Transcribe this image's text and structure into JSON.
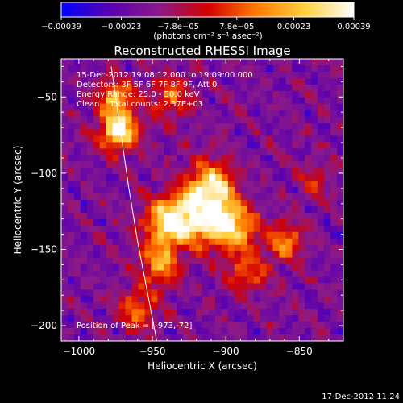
{
  "chart_data": {
    "type": "heatmap",
    "title": "Reconstructed RHESSI Image",
    "xlabel": "Heliocentric X (arcsec)",
    "ylabel": "Heliocentric Y (arcsec)",
    "xlim": [
      -1012,
      -820
    ],
    "ylim": [
      -210,
      -25
    ],
    "x_ticks": [
      -1000,
      -950,
      -900,
      -850
    ],
    "y_ticks": [
      -200,
      -150,
      -100,
      -50
    ],
    "x_tick_labels": [
      "−1000",
      "−950",
      "−900",
      "−850"
    ],
    "y_tick_labels": [
      "−200",
      "−150",
      "−100",
      "−50"
    ],
    "colorbar": {
      "range": [
        -0.00039,
        0.00039
      ],
      "tick_values": [
        -0.00039,
        -0.00023,
        -7.8e-05,
        7.8e-05,
        0.00023,
        0.00039
      ],
      "tick_labels": [
        "−0.00039",
        "−0.00023",
        "−7.8e−05",
        "7.8e−05",
        "0.00023",
        "0.00039"
      ],
      "units": "(photons cm⁻² s⁻¹ asec⁻²)",
      "colors": [
        "#0000ff",
        "#5a00b0",
        "#8a1a8a",
        "#d40000",
        "#ff7a00",
        "#ffd040",
        "#ffffff"
      ]
    },
    "annotations": {
      "time_range": "15-Dec-2012 19:08:12.000 to 19:09:00.000",
      "detectors": "Detectors: 3F 5F 6F 7F 8F 9F, Att 0",
      "energy_range": "Energy Range: 25.0 - 50.0 keV",
      "method_counts": "Clean    Total counts: 2.37E+03",
      "peak_position": "Position of Peak = [-973,-72]"
    },
    "peak": {
      "x": -973,
      "y": -72
    },
    "limb": [
      [
        -978,
        -30
      ],
      [
        -972,
        -70
      ],
      [
        -966,
        -110
      ],
      [
        -960,
        -145
      ],
      [
        -953,
        -180
      ],
      [
        -947,
        -210
      ]
    ],
    "sources": [
      {
        "x": -973,
        "y": -72,
        "amp": 1.0,
        "w": 9
      },
      {
        "x": -975,
        "y": -50,
        "amp": 0.7,
        "w": 8
      },
      {
        "x": -910,
        "y": -108,
        "amp": 0.8,
        "w": 11
      },
      {
        "x": -918,
        "y": -128,
        "amp": 0.9,
        "w": 12
      },
      {
        "x": -940,
        "y": -132,
        "amp": 0.85,
        "w": 11
      },
      {
        "x": -895,
        "y": -135,
        "amp": 0.8,
        "w": 11
      },
      {
        "x": -945,
        "y": -160,
        "amp": 0.6,
        "w": 10
      },
      {
        "x": -860,
        "y": -145,
        "amp": 0.55,
        "w": 9
      },
      {
        "x": -938,
        "y": -50,
        "amp": 0.45,
        "w": 10
      },
      {
        "x": -960,
        "y": -190,
        "amp": 0.5,
        "w": 9
      },
      {
        "x": -885,
        "y": -165,
        "amp": 0.45,
        "w": 10
      },
      {
        "x": -840,
        "y": -105,
        "amp": 0.3,
        "w": 8
      }
    ],
    "grid": false
  },
  "footer": {
    "timestamp": "17-Dec-2012 11:24"
  }
}
